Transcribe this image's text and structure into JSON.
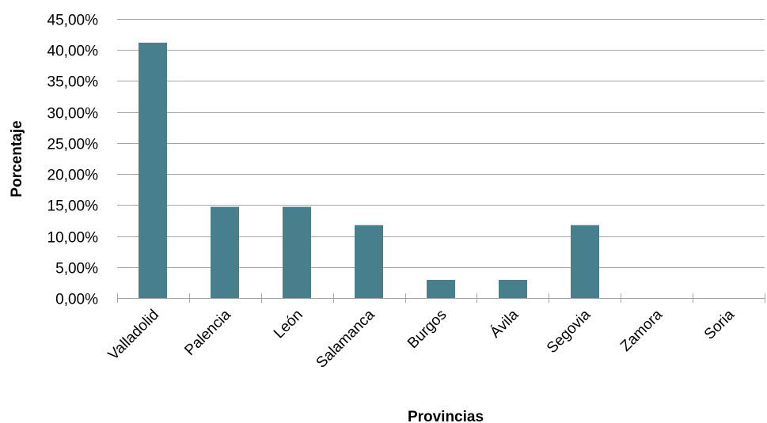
{
  "chart_data": {
    "type": "bar",
    "categories": [
      "Valladolid",
      "Palencia",
      "León",
      "Salamanca",
      "Burgos",
      "Ávila",
      "Segovia",
      "Zamora",
      "Soria"
    ],
    "values": [
      41.18,
      14.71,
      14.71,
      11.76,
      2.94,
      2.94,
      11.76,
      0,
      0
    ],
    "title": "",
    "xlabel": "Provincias",
    "ylabel": "Porcentaje",
    "ylim": [
      0,
      45
    ],
    "yticks": [
      0,
      5,
      10,
      15,
      20,
      25,
      30,
      35,
      40,
      45
    ],
    "ytick_labels": [
      "0,00%",
      "5,00%",
      "10,00%",
      "15,00%",
      "20,00%",
      "25,00%",
      "30,00%",
      "35,00%",
      "40,00%",
      "45,00%"
    ],
    "grid": true,
    "legend": "none",
    "bar_color": "#477f8c"
  }
}
